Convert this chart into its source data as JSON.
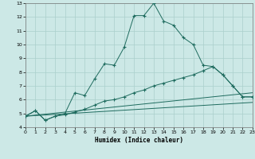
{
  "xlabel": "Humidex (Indice chaleur)",
  "bg_color": "#cce8e6",
  "grid_color": "#aacfcc",
  "line_color": "#1e6b5e",
  "xlim": [
    0,
    23
  ],
  "ylim": [
    4,
    13
  ],
  "xticks": [
    0,
    1,
    2,
    3,
    4,
    5,
    6,
    7,
    8,
    9,
    10,
    11,
    12,
    13,
    14,
    15,
    16,
    17,
    18,
    19,
    20,
    21,
    22,
    23
  ],
  "yticks": [
    4,
    5,
    6,
    7,
    8,
    9,
    10,
    11,
    12,
    13
  ],
  "curve1_x": [
    0,
    1,
    2,
    3,
    4,
    5,
    6,
    7,
    8,
    9,
    10,
    11,
    12,
    13,
    14,
    15,
    16,
    17,
    18,
    19,
    20,
    21,
    22,
    23
  ],
  "curve1_y": [
    4.8,
    5.2,
    4.5,
    4.8,
    5.0,
    6.5,
    6.3,
    7.5,
    8.6,
    8.5,
    9.8,
    12.1,
    12.1,
    13.0,
    11.7,
    11.4,
    10.5,
    10.0,
    8.5,
    8.4,
    7.8,
    7.0,
    6.2,
    6.2
  ],
  "curve2_x": [
    0,
    1,
    2,
    3,
    4,
    5,
    6,
    7,
    8,
    9,
    10,
    11,
    12,
    13,
    14,
    15,
    16,
    17,
    18,
    19,
    20,
    21,
    22,
    23
  ],
  "curve2_y": [
    4.8,
    5.2,
    4.5,
    4.8,
    4.9,
    5.1,
    5.3,
    5.6,
    5.9,
    6.0,
    6.2,
    6.5,
    6.7,
    7.0,
    7.2,
    7.4,
    7.6,
    7.8,
    8.1,
    8.4,
    7.8,
    7.0,
    6.2,
    6.2
  ],
  "line3_x": [
    0,
    23
  ],
  "line3_y": [
    4.8,
    6.5
  ],
  "line4_x": [
    0,
    23
  ],
  "line4_y": [
    4.8,
    5.8
  ]
}
